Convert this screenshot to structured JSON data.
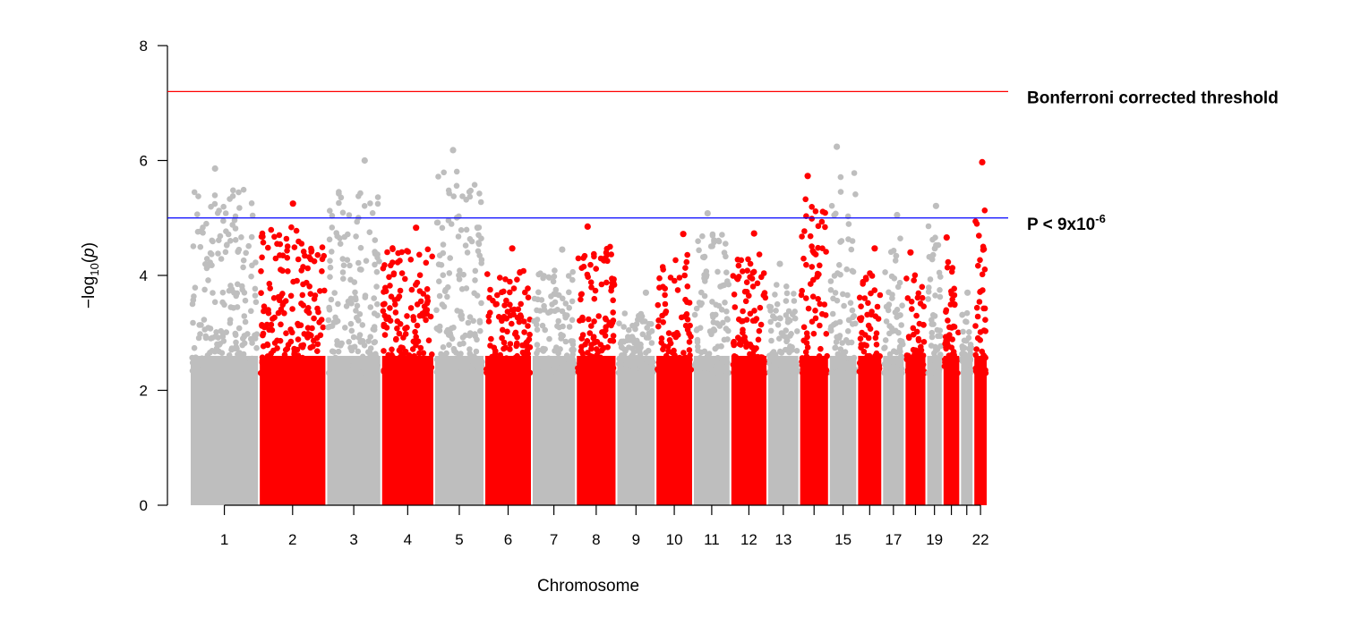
{
  "chart_data": {
    "type": "scatter",
    "subtype": "manhattan",
    "title": "",
    "xlabel": "Chromosome",
    "ylabel": {
      "base": "−log",
      "subscript": "10",
      "rest": "(",
      "italic": "p",
      "close": ")"
    },
    "ylim": [
      0,
      8
    ],
    "yticks": [
      "0",
      "2",
      "4",
      "6",
      "8"
    ],
    "grid": false,
    "legend": "none",
    "colors": {
      "odd": "#bebebe",
      "even": "#ff0000",
      "bonferroni": "#ff0000",
      "suggestive": "#0000ff"
    },
    "chromosomes": [
      {
        "chr": "1",
        "label": "1",
        "length": 249,
        "ymax": 5.86
      },
      {
        "chr": "2",
        "label": "2",
        "length": 243,
        "ymax": 5.25
      },
      {
        "chr": "3",
        "label": "3",
        "length": 198,
        "ymax": 6.0
      },
      {
        "chr": "4",
        "label": "4",
        "length": 191,
        "ymax": 4.83
      },
      {
        "chr": "5",
        "label": "5",
        "length": 181,
        "ymax": 6.18
      },
      {
        "chr": "6",
        "label": "6",
        "length": 171,
        "ymax": 4.47
      },
      {
        "chr": "7",
        "label": "7",
        "length": 159,
        "ymax": 4.45
      },
      {
        "chr": "8",
        "label": "8",
        "length": 146,
        "ymax": 4.85
      },
      {
        "chr": "9",
        "label": "9",
        "length": 141,
        "ymax": 3.7
      },
      {
        "chr": "10",
        "label": "10",
        "length": 135,
        "ymax": 4.72
      },
      {
        "chr": "11",
        "label": "11",
        "length": 135,
        "ymax": 5.08
      },
      {
        "chr": "12",
        "label": "12",
        "length": 133,
        "ymax": 4.73
      },
      {
        "chr": "13",
        "label": "13",
        "length": 115,
        "ymax": 4.2
      },
      {
        "chr": "14",
        "label": "",
        "length": 107,
        "ymax": 5.73
      },
      {
        "chr": "15",
        "label": "15",
        "length": 102,
        "ymax": 6.24
      },
      {
        "chr": "16",
        "label": "",
        "length": 90,
        "ymax": 4.47
      },
      {
        "chr": "17",
        "label": "17",
        "length": 81,
        "ymax": 5.05
      },
      {
        "chr": "18",
        "label": "",
        "length": 78,
        "ymax": 4.4
      },
      {
        "chr": "19",
        "label": "19",
        "length": 59,
        "ymax": 5.21
      },
      {
        "chr": "20",
        "label": "",
        "length": 63,
        "ymax": 4.66
      },
      {
        "chr": "21",
        "label": "",
        "length": 48,
        "ymax": 3.7
      },
      {
        "chr": "22",
        "label": "22",
        "length": 51,
        "ymax": 5.97
      }
    ],
    "thresholds": [
      {
        "name": "bonferroni",
        "y": 7.2,
        "label": "Bonferroni corrected threshold"
      },
      {
        "name": "suggestive",
        "y": 5.0,
        "label_base": "P < 9x10",
        "label_exp": "-6"
      }
    ]
  }
}
